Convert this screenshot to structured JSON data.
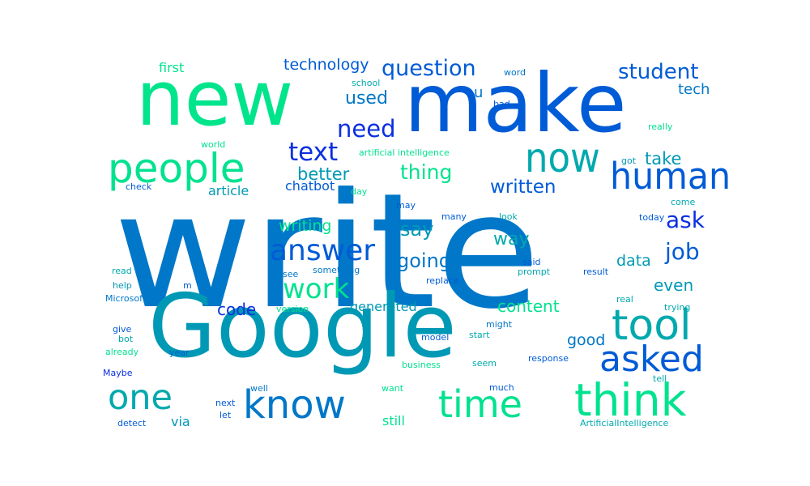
{
  "palette": {
    "blue": "#0a2fe0",
    "royal": "#005bd6",
    "azure": "#0077c8",
    "teal": "#0099b5",
    "cyan": "#00a9ad",
    "mint": "#00e48c",
    "green": "#00e28f"
  },
  "words": [
    {
      "text": "write",
      "color": "#0077c8"
    },
    {
      "text": "Google",
      "color": "#0099b5"
    },
    {
      "text": "make",
      "color": "#005bd6"
    },
    {
      "text": "new",
      "color": "#00e48c"
    },
    {
      "text": "people",
      "color": "#00e28f"
    },
    {
      "text": "now",
      "color": "#00a9ad"
    },
    {
      "text": "human",
      "color": "#005bd6"
    },
    {
      "text": "think",
      "color": "#00e28f"
    },
    {
      "text": "tool",
      "color": "#00a9ad"
    },
    {
      "text": "know",
      "color": "#0077c8"
    },
    {
      "text": "time",
      "color": "#00e28f"
    },
    {
      "text": "one",
      "color": "#00a9ad"
    },
    {
      "text": "asked",
      "color": "#005bd6"
    },
    {
      "text": "answer",
      "color": "#005bd6"
    },
    {
      "text": "work",
      "color": "#00e28f"
    },
    {
      "text": "text",
      "color": "#0a2fe0"
    },
    {
      "text": "need",
      "color": "#0a2fe0"
    },
    {
      "text": "question",
      "color": "#005bd6"
    },
    {
      "text": "job",
      "color": "#005bd6"
    },
    {
      "text": "ask",
      "color": "#0a2fe0"
    },
    {
      "text": "student",
      "color": "#005bd6"
    },
    {
      "text": "thing",
      "color": "#00e28f"
    },
    {
      "text": "written",
      "color": "#005bd6"
    },
    {
      "text": "say",
      "color": "#0099b5"
    },
    {
      "text": "going",
      "color": "#0077c8"
    },
    {
      "text": "way",
      "color": "#00a9ad"
    },
    {
      "text": "better",
      "color": "#0099b5"
    },
    {
      "text": "take",
      "color": "#0099b5"
    },
    {
      "text": "used",
      "color": "#0077c8"
    },
    {
      "text": "technology",
      "color": "#005bd6"
    },
    {
      "text": "writing",
      "color": "#00e28f"
    },
    {
      "text": "content",
      "color": "#00e28f"
    },
    {
      "text": "code",
      "color": "#0a2fe0"
    },
    {
      "text": "data",
      "color": "#0099b5"
    },
    {
      "text": "even",
      "color": "#0099b5"
    },
    {
      "text": "tech",
      "color": "#0077c8"
    },
    {
      "text": "good",
      "color": "#0077c8"
    },
    {
      "text": "chatbot",
      "color": "#005bd6"
    },
    {
      "text": "article",
      "color": "#0099b5"
    },
    {
      "text": "generated",
      "color": "#0099b5"
    },
    {
      "text": "first",
      "color": "#00e28f"
    },
    {
      "text": "u",
      "color": "#0077c8"
    },
    {
      "text": "still",
      "color": "#00e28f"
    },
    {
      "text": "via",
      "color": "#0099b5"
    },
    {
      "text": "word",
      "color": "#0077c8"
    },
    {
      "text": "school",
      "color": "#00a9ad"
    },
    {
      "text": "bad",
      "color": "#005bd6"
    },
    {
      "text": "really",
      "color": "#00e28f"
    },
    {
      "text": "world",
      "color": "#00e28f"
    },
    {
      "text": "artificial intelligence",
      "color": "#00e28f"
    },
    {
      "text": "got",
      "color": "#0099b5"
    },
    {
      "text": "check",
      "color": "#005bd6"
    },
    {
      "text": "day",
      "color": "#00e28f"
    },
    {
      "text": "come",
      "color": "#00a9ad"
    },
    {
      "text": "may",
      "color": "#005bd6"
    },
    {
      "text": "many",
      "color": "#005bd6"
    },
    {
      "text": "look",
      "color": "#00a9ad"
    },
    {
      "text": "today",
      "color": "#005bd6"
    },
    {
      "text": "read",
      "color": "#00a9ad"
    },
    {
      "text": "something",
      "color": "#0077c8"
    },
    {
      "text": "said",
      "color": "#005bd6"
    },
    {
      "text": "prompt",
      "color": "#00a9ad"
    },
    {
      "text": "result",
      "color": "#005bd6"
    },
    {
      "text": "help",
      "color": "#0099b5"
    },
    {
      "text": "see",
      "color": "#0077c8"
    },
    {
      "text": "replace",
      "color": "#005bd6"
    },
    {
      "text": "m",
      "color": "#005bd6"
    },
    {
      "text": "Microsoft",
      "color": "#0077c8"
    },
    {
      "text": "version",
      "color": "#00e28f"
    },
    {
      "text": "real",
      "color": "#00a9ad"
    },
    {
      "text": "trying",
      "color": "#00a9ad"
    },
    {
      "text": "might",
      "color": "#0077c8"
    },
    {
      "text": "give",
      "color": "#005bd6"
    },
    {
      "text": "bot",
      "color": "#00a9ad"
    },
    {
      "text": "model",
      "color": "#005bd6"
    },
    {
      "text": "start",
      "color": "#00a9ad"
    },
    {
      "text": "already",
      "color": "#00e28f"
    },
    {
      "text": "year",
      "color": "#005bd6"
    },
    {
      "text": "seem",
      "color": "#00a9ad"
    },
    {
      "text": "response",
      "color": "#005bd6"
    },
    {
      "text": "business",
      "color": "#00e28f"
    },
    {
      "text": "Maybe",
      "color": "#0a2fe0"
    },
    {
      "text": "tell",
      "color": "#00a9ad"
    },
    {
      "text": "well",
      "color": "#0077c8"
    },
    {
      "text": "much",
      "color": "#005bd6"
    },
    {
      "text": "want",
      "color": "#00e28f"
    },
    {
      "text": "next",
      "color": "#005bd6"
    },
    {
      "text": "let",
      "color": "#005bd6"
    },
    {
      "text": "ArtificialIntelligence",
      "color": "#00a9ad"
    },
    {
      "text": "detect",
      "color": "#005bd6"
    }
  ]
}
